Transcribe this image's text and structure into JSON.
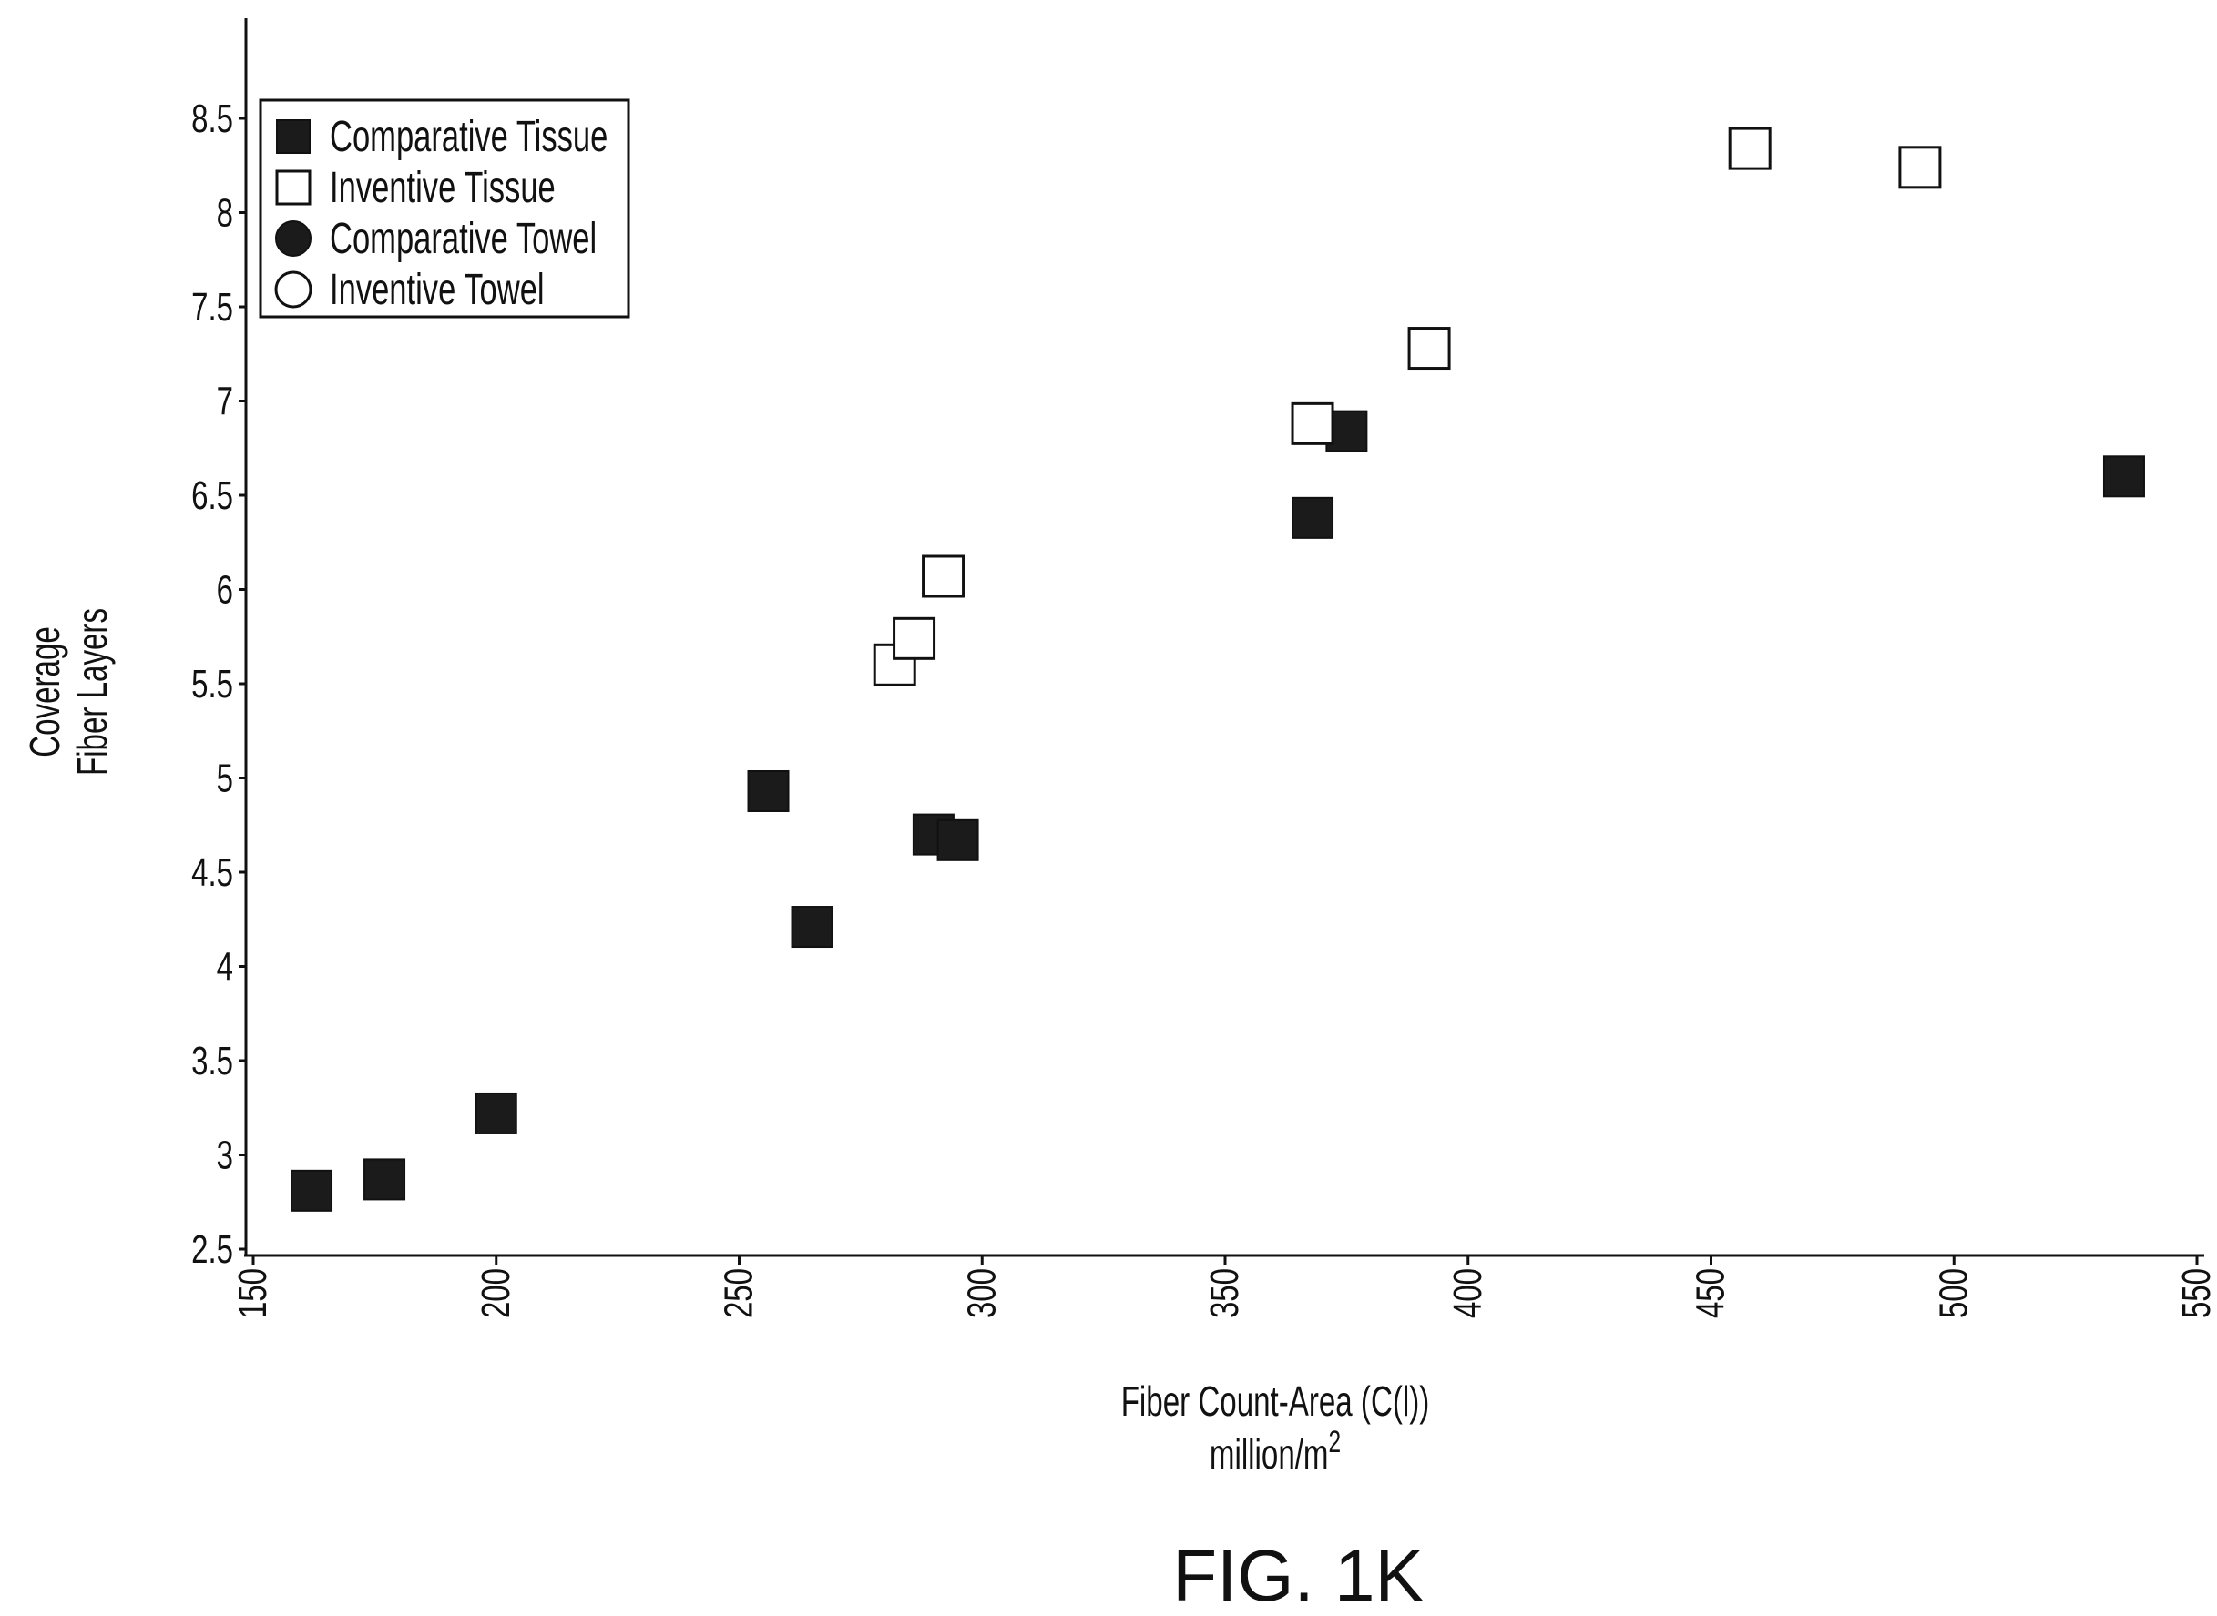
{
  "figure": {
    "caption": "FIG. 1K"
  },
  "chart_data": {
    "type": "scatter",
    "title": "",
    "xlabel_lines": [
      "Fiber Count-Area (C(l))",
      "million/m"
    ],
    "xlabel_superscript": "2",
    "ylabel_lines": [
      "Coverage",
      "Fiber Layers"
    ],
    "xlim": [
      145,
      555
    ],
    "ylim": [
      2.45,
      9.05
    ],
    "x_ticks": [
      150,
      200,
      250,
      300,
      350,
      400,
      450,
      500,
      550
    ],
    "x_tick_labels": [
      "150",
      "200",
      "250",
      "300",
      "350",
      "400",
      "450",
      "500",
      "550"
    ],
    "y_ticks": [
      2.5,
      3,
      3.5,
      4,
      4.5,
      5,
      5.5,
      6,
      6.5,
      7,
      7.5,
      8,
      8.5
    ],
    "y_tick_labels": [
      "2.5",
      "3",
      "3.5",
      "4",
      "4.5",
      "5",
      "5.5",
      "6",
      "6.5",
      "7",
      "7.5",
      "8",
      "8.5"
    ],
    "grid": false,
    "legend": {
      "placement": "top-left",
      "entries": [
        {
          "label": "Comparative Tissue",
          "marker": "filled-square"
        },
        {
          "label": "Inventive Tissue",
          "marker": "open-square"
        },
        {
          "label": "Comparative Towel",
          "marker": "filled-circle"
        },
        {
          "label": "Inventive Towel",
          "marker": "open-circle"
        }
      ]
    },
    "series": [
      {
        "name": "Comparative Tissue",
        "marker": "filled-square",
        "points": [
          {
            "x": 162,
            "y": 2.81
          },
          {
            "x": 177,
            "y": 2.87
          },
          {
            "x": 200,
            "y": 3.22
          },
          {
            "x": 256,
            "y": 4.93
          },
          {
            "x": 265,
            "y": 4.21
          },
          {
            "x": 290,
            "y": 4.7
          },
          {
            "x": 295,
            "y": 4.67
          },
          {
            "x": 368,
            "y": 6.38
          },
          {
            "x": 375,
            "y": 6.84
          },
          {
            "x": 535,
            "y": 6.6
          }
        ]
      },
      {
        "name": "Inventive Tissue",
        "marker": "open-square",
        "points": [
          {
            "x": 282,
            "y": 5.6
          },
          {
            "x": 286,
            "y": 5.74
          },
          {
            "x": 292,
            "y": 6.07
          },
          {
            "x": 368,
            "y": 6.88
          },
          {
            "x": 392,
            "y": 7.28
          },
          {
            "x": 458,
            "y": 8.34
          },
          {
            "x": 493,
            "y": 8.24
          }
        ]
      },
      {
        "name": "Comparative Towel",
        "marker": "filled-circle",
        "points": []
      },
      {
        "name": "Inventive Towel",
        "marker": "open-circle",
        "points": []
      }
    ],
    "colors": {
      "ink": "#111111",
      "open_fill": "#ffffff",
      "filled_fill": "#1b1b1b"
    }
  }
}
